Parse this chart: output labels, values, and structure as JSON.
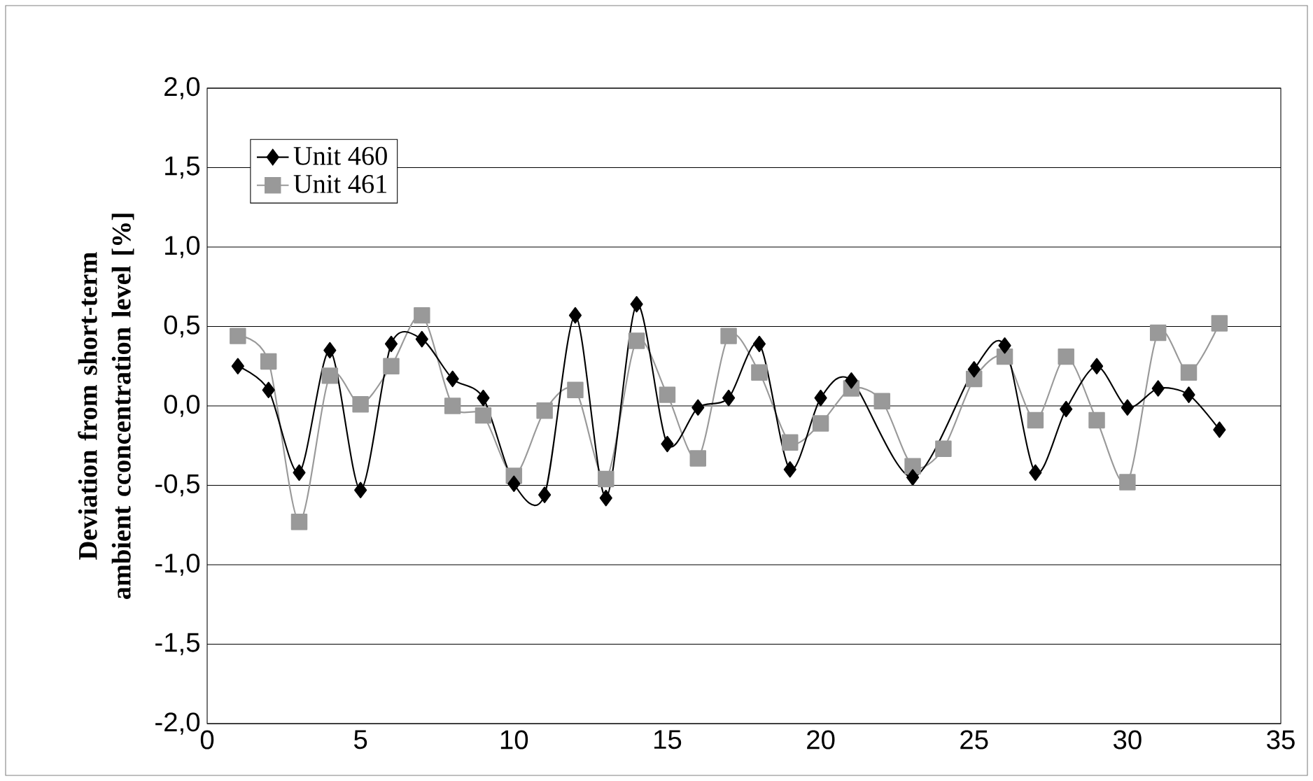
{
  "chart_data": {
    "type": "line",
    "ylabel": "Deviation from short-term ambient cconcentration level [%]",
    "x": [
      1,
      2,
      3,
      4,
      5,
      6,
      7,
      8,
      9,
      10,
      11,
      12,
      13,
      14,
      15,
      16,
      17,
      18,
      19,
      20,
      21,
      22,
      23,
      24,
      25,
      26,
      27,
      28,
      29,
      30,
      31,
      32,
      33
    ],
    "series": [
      {
        "name": "Unit 460",
        "color": "#000000",
        "marker": "diamond",
        "values": [
          0.25,
          0.1,
          -0.42,
          0.35,
          -0.53,
          0.39,
          0.42,
          0.17,
          0.05,
          -0.49,
          -0.56,
          0.57,
          -0.58,
          0.64,
          -0.24,
          -0.01,
          0.05,
          0.39,
          -0.4,
          0.05,
          0.16,
          null,
          -0.45,
          null,
          0.23,
          0.38,
          -0.42,
          -0.02,
          0.25,
          -0.01,
          0.11,
          0.07,
          -0.15
        ]
      },
      {
        "name": "Unit 461",
        "color": "#999999",
        "marker": "square",
        "values": [
          0.44,
          0.28,
          -0.73,
          0.19,
          0.01,
          0.25,
          0.57,
          0.0,
          -0.06,
          -0.44,
          -0.03,
          0.1,
          -0.46,
          0.41,
          0.07,
          -0.33,
          0.44,
          0.21,
          -0.23,
          -0.11,
          0.11,
          0.03,
          -0.38,
          -0.27,
          0.17,
          0.31,
          -0.09,
          0.31,
          -0.09,
          -0.48,
          0.46,
          0.21,
          0.52
        ]
      }
    ],
    "xlim": [
      0,
      35
    ],
    "xticks": [
      0,
      5,
      10,
      15,
      20,
      25,
      30,
      35
    ],
    "ylim": [
      -2,
      2
    ],
    "yticks": [
      {
        "value": -2,
        "label": "-2,0"
      },
      {
        "value": -1.5,
        "label": "-1,5"
      },
      {
        "value": -1,
        "label": "-1,0"
      },
      {
        "value": -0.5,
        "label": "-0,5"
      },
      {
        "value": 0,
        "label": "0,0"
      },
      {
        "value": 0.5,
        "label": "0,5"
      },
      {
        "value": 1,
        "label": "1,0"
      },
      {
        "value": 1.5,
        "label": "1,5"
      },
      {
        "value": 2,
        "label": "2,0"
      }
    ],
    "grid": "y",
    "legend": "top left"
  }
}
